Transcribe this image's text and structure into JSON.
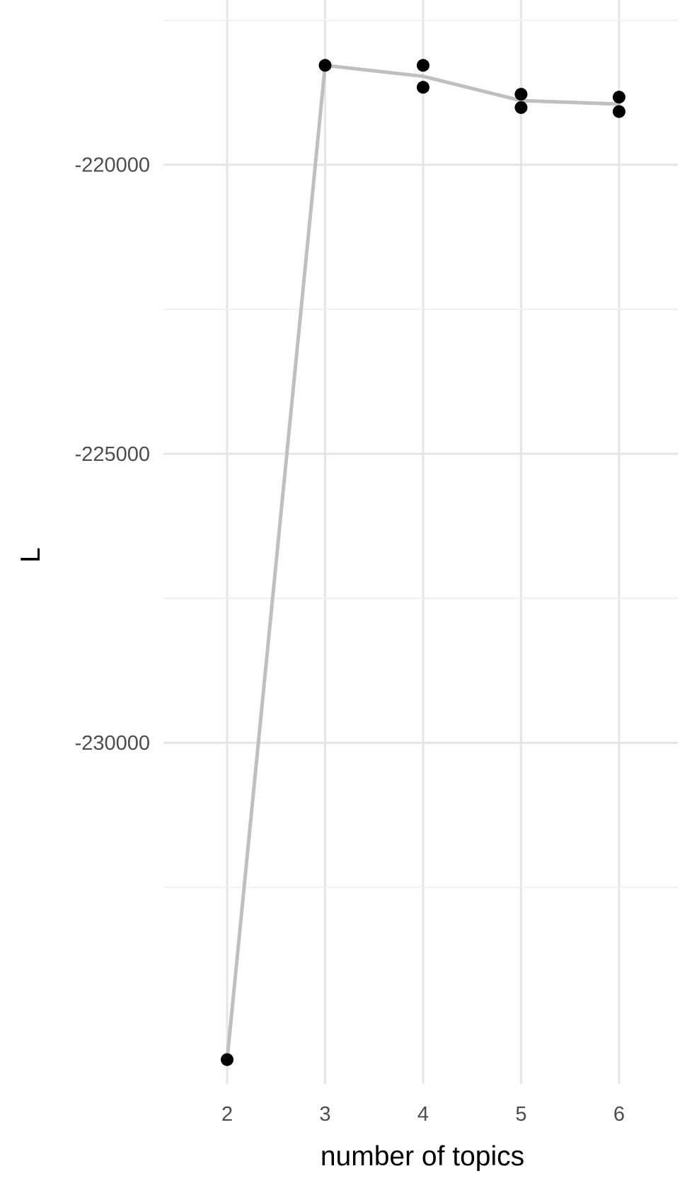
{
  "chart_data": {
    "type": "scatter",
    "title": "",
    "xlabel": "number of topics",
    "ylabel": "L",
    "x_ticks": [
      "2",
      "3",
      "4",
      "5",
      "6"
    ],
    "y_ticks": [
      "-220000",
      "-225000",
      "-230000"
    ],
    "xlim": [
      1.35,
      6.6
    ],
    "ylim": [
      -235900,
      -217150
    ],
    "grid": true,
    "series": [
      {
        "kind": "points",
        "x": [
          2,
          3,
          4,
          4,
          5,
          5,
          6,
          6
        ],
        "y": [
          -235480,
          -218280,
          -218280,
          -218660,
          -218780,
          -219010,
          -218830,
          -219080
        ]
      },
      {
        "kind": "line",
        "x": [
          2,
          3,
          4,
          5,
          6
        ],
        "y": [
          -235480,
          -218280,
          -218470,
          -218890,
          -218950
        ]
      }
    ],
    "colors": {
      "background": "#ffffff",
      "grid_major": "#e5e5e5",
      "grid_minor": "#f0f0f0",
      "line": "#bfbfbf",
      "point": "#000000",
      "tick_text": "#4d4d4d",
      "title_text": "#000000"
    }
  }
}
